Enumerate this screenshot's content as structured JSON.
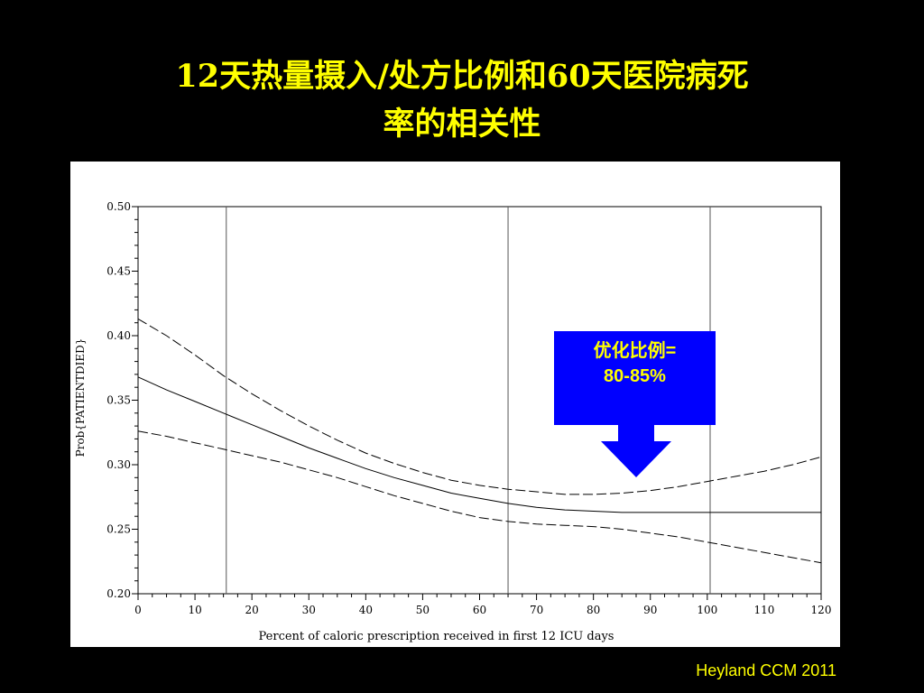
{
  "slide": {
    "title_line1": "12天热量摄入/处方比例和60天医院病死",
    "title_line2": "率的相关性",
    "callout_line1": "优化比例=",
    "callout_line2": "80-85%",
    "credit": "Heyland CCM 2011"
  },
  "colors": {
    "background": "#000000",
    "title": "#ffff00",
    "callout_bg": "#0000ff",
    "callout_text": "#ffff00",
    "line": "#000000"
  },
  "chart_data": {
    "type": "line",
    "xlabel": "Percent of caloric prescription received in first 12 ICU days",
    "ylabel": "Prob{PATIENTDIED}",
    "xlim": [
      0,
      120
    ],
    "ylim": [
      0.2,
      0.5
    ],
    "x_ticks": [
      0,
      10,
      20,
      30,
      40,
      50,
      60,
      70,
      80,
      90,
      100,
      110,
      120
    ],
    "y_ticks": [
      "0.20",
      "0.25",
      "0.30",
      "0.35",
      "0.40",
      "0.45",
      "0.50"
    ],
    "reference_lines_x": [
      15.5,
      65,
      100.5
    ],
    "grid": false,
    "series": [
      {
        "style": "dashed",
        "x": [
          0,
          5,
          10,
          15,
          20,
          25,
          30,
          35,
          40,
          45,
          50,
          55,
          60,
          65,
          70,
          75,
          80,
          85,
          90,
          95,
          100,
          105,
          110,
          115,
          120
        ],
        "y": [
          0.413,
          0.4,
          0.385,
          0.369,
          0.355,
          0.342,
          0.33,
          0.319,
          0.309,
          0.301,
          0.294,
          0.288,
          0.284,
          0.281,
          0.279,
          0.277,
          0.277,
          0.278,
          0.28,
          0.283,
          0.287,
          0.291,
          0.295,
          0.3,
          0.306
        ]
      },
      {
        "style": "solid",
        "x": [
          0,
          5,
          10,
          15,
          20,
          25,
          30,
          35,
          40,
          45,
          50,
          55,
          60,
          65,
          70,
          75,
          80,
          85,
          90,
          95,
          100,
          105,
          110,
          115,
          120
        ],
        "y": [
          0.368,
          0.358,
          0.349,
          0.34,
          0.331,
          0.322,
          0.313,
          0.305,
          0.297,
          0.29,
          0.284,
          0.278,
          0.274,
          0.27,
          0.267,
          0.265,
          0.264,
          0.263,
          0.263,
          0.263,
          0.263,
          0.263,
          0.263,
          0.263,
          0.263
        ]
      },
      {
        "style": "dashed",
        "x": [
          0,
          5,
          10,
          15,
          20,
          25,
          30,
          35,
          40,
          45,
          50,
          55,
          60,
          65,
          70,
          75,
          80,
          85,
          90,
          95,
          100,
          105,
          110,
          115,
          120
        ],
        "y": [
          0.326,
          0.322,
          0.317,
          0.312,
          0.307,
          0.302,
          0.296,
          0.29,
          0.283,
          0.276,
          0.27,
          0.264,
          0.259,
          0.256,
          0.254,
          0.253,
          0.252,
          0.25,
          0.247,
          0.244,
          0.24,
          0.236,
          0.232,
          0.228,
          0.224
        ]
      }
    ]
  }
}
